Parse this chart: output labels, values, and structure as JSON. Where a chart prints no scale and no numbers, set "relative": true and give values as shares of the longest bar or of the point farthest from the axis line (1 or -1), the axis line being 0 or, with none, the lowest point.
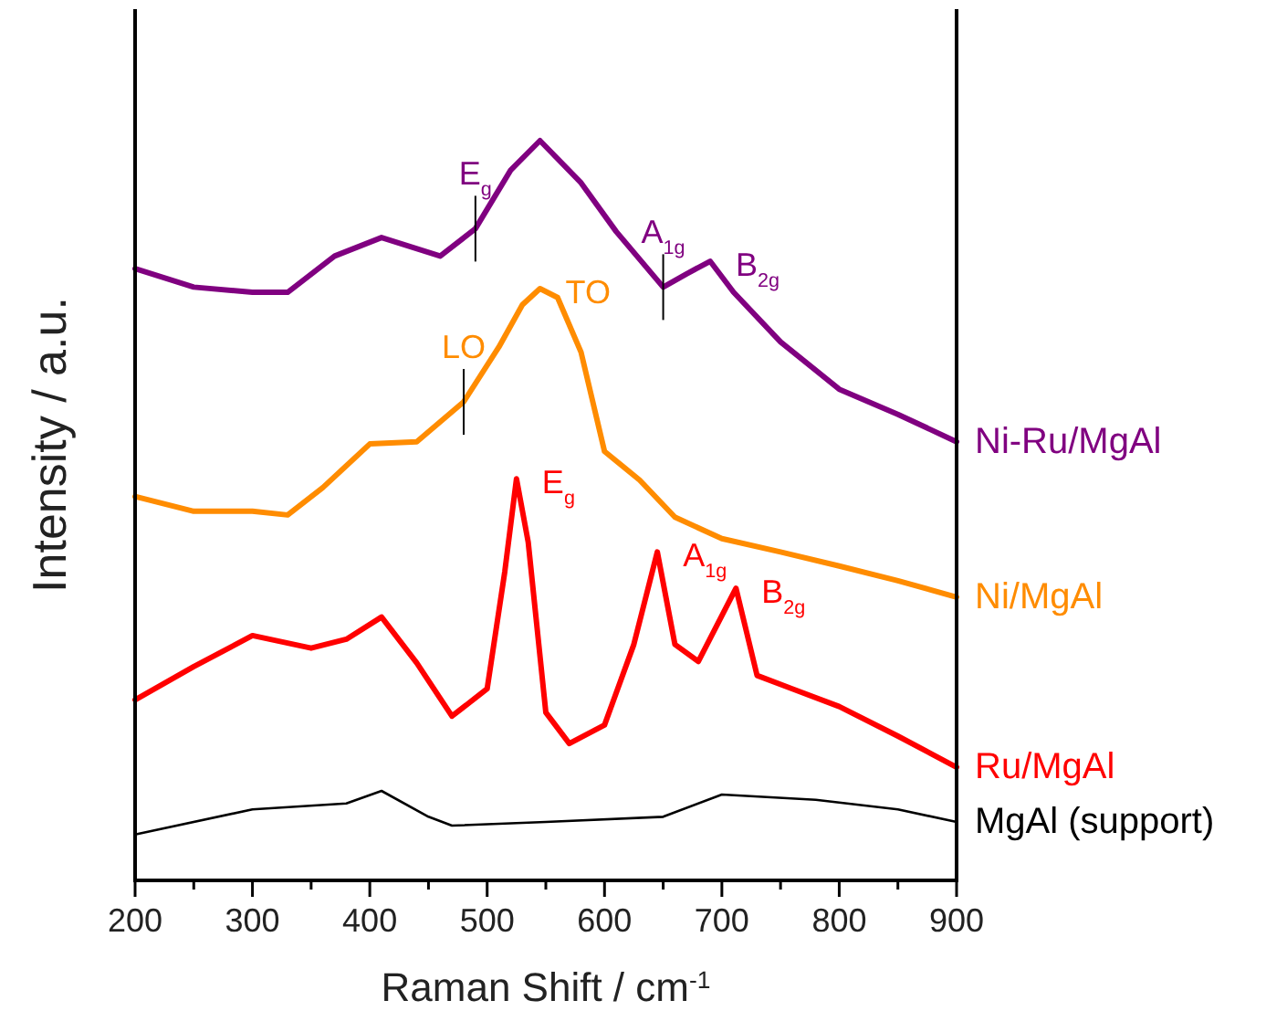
{
  "chart_data": {
    "type": "line",
    "relative": true,
    "xlabel": "Raman Shift / cm$^{-1}$",
    "ylabel": "Intensity / a.u.",
    "xlim": [
      200,
      900
    ],
    "xticks": [
      200,
      {
        "value": 250,
        "label": null
      },
      300,
      {
        "value": 350,
        "label": null
      },
      400,
      {
        "value": 450,
        "label": null
      },
      500,
      {
        "value": 550,
        "label": null
      },
      600,
      {
        "value": 650,
        "label": null
      },
      700,
      {
        "value": 750,
        "label": null
      },
      800,
      {
        "value": 850,
        "label": null
      },
      900
    ],
    "legend": false,
    "grid": false,
    "marker": "none",
    "line_style": "solid",
    "series": [
      {
        "name": "Ni-Ru/MgAl",
        "color": "#800080",
        "x": [
          200,
          250,
          300,
          330,
          370,
          410,
          460,
          490,
          520,
          545,
          580,
          610,
          650,
          670,
          690,
          710,
          750,
          800,
          850,
          900
        ],
        "values": [
          0.827,
          0.802,
          0.795,
          0.795,
          0.844,
          0.869,
          0.844,
          0.881,
          0.96,
          1,
          0.943,
          0.877,
          0.802,
          0.82,
          0.837,
          0.795,
          0.728,
          0.664,
          0.63,
          0.593
        ]
      },
      {
        "name": "Ni/MgAl",
        "color": "#ff8c00",
        "x": [
          200,
          250,
          300,
          330,
          360,
          400,
          440,
          480,
          510,
          530,
          545,
          560,
          580,
          600,
          630,
          660,
          700,
          750,
          800,
          850,
          900
        ],
        "values": [
          0.519,
          0.499,
          0.499,
          0.494,
          0.531,
          0.59,
          0.593,
          0.647,
          0.721,
          0.778,
          0.8,
          0.788,
          0.714,
          0.58,
          0.541,
          0.491,
          0.462,
          0.444,
          0.425,
          0.405,
          0.383
        ]
      },
      {
        "name": "Ru/MgAl",
        "color": "#ff0000",
        "x": [
          200,
          250,
          300,
          350,
          380,
          410,
          440,
          470,
          500,
          515,
          525,
          535,
          550,
          570,
          600,
          625,
          645,
          660,
          680,
          700,
          712,
          730,
          760,
          800,
          850,
          900
        ],
        "values": [
          0.244,
          0.289,
          0.331,
          0.314,
          0.326,
          0.356,
          0.294,
          0.222,
          0.259,
          0.417,
          0.543,
          0.457,
          0.227,
          0.185,
          0.21,
          0.319,
          0.444,
          0.319,
          0.296,
          0.358,
          0.395,
          0.277,
          0.259,
          0.235,
          0.195,
          0.153
        ]
      },
      {
        "name": "MgAl (support)",
        "color": "#000000",
        "x": [
          200,
          300,
          380,
          410,
          450,
          470,
          550,
          650,
          700,
          780,
          850,
          900
        ],
        "values": [
          0.062,
          0.096,
          0.104,
          0.121,
          0.086,
          0.074,
          0.079,
          0.086,
          0.116,
          0.109,
          0.096,
          0.079
        ]
      }
    ],
    "annotations": [
      {
        "text": "E$_{g}$",
        "x": 490,
        "y": 0.881
      },
      {
        "text": "A$_{1g}$",
        "x": 650,
        "y": 0.802
      },
      {
        "text": "B$_{2g}$",
        "x": 690,
        "y": 0.837
      },
      {
        "text": "TO",
        "x": 545,
        "y": 0.8
      },
      {
        "text": "LO",
        "x": 480,
        "y": 0.647
      },
      {
        "text": "E$_{g}$",
        "x": 525,
        "y": 0.543
      },
      {
        "text": "A$_{1g}$",
        "x": 645,
        "y": 0.444
      },
      {
        "text": "B$_{2g}$",
        "x": 712,
        "y": 0.395
      }
    ]
  }
}
